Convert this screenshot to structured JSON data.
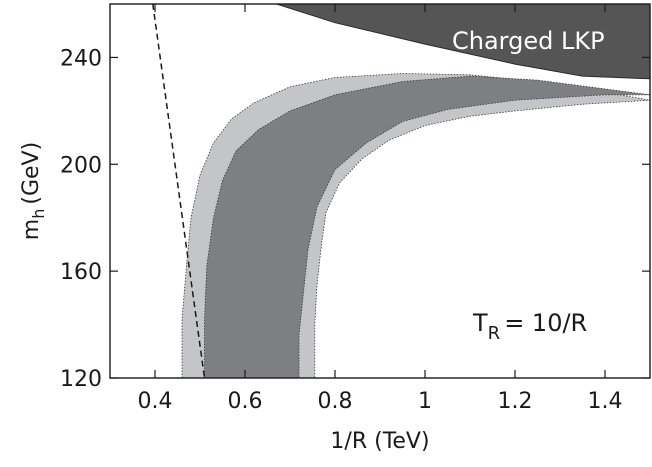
{
  "chart_data": {
    "type": "area",
    "xlabel": "1/R (TeV)",
    "ylabel": {
      "main": "m",
      "sub": "h",
      "unit": "(GeV)"
    },
    "xlim": [
      0.3,
      1.5
    ],
    "ylim": [
      120,
      260
    ],
    "xticks": [
      0.4,
      0.6,
      0.8,
      1.0,
      1.2,
      1.4
    ],
    "xtick_labels": [
      "0.4",
      "0.6",
      "0.8",
      "1",
      "1.2",
      "1.4"
    ],
    "yticks": [
      120,
      160,
      200,
      240
    ],
    "ytick_labels": [
      "120",
      "160",
      "200",
      "240"
    ],
    "colors": {
      "charged_region": "#555555",
      "outer_band": "#c4c5c9",
      "inner_band": "#7e7f83",
      "dashed_line": "#1a1a1a",
      "frame": "#1a1a1a"
    },
    "regions": [
      {
        "name": "charged-lkp-region",
        "label": "Charged LKP",
        "boundary": [
          [
            0.67,
            260
          ],
          [
            0.8,
            253
          ],
          [
            1.0,
            245
          ],
          [
            1.2,
            237.5
          ],
          [
            1.35,
            233
          ],
          [
            1.5,
            232
          ]
        ]
      }
    ],
    "bands": [
      {
        "name": "outer-band",
        "left_edge": [
          [
            0.46,
            120
          ],
          [
            0.46,
            142
          ],
          [
            0.47,
            162
          ],
          [
            0.48,
            180
          ],
          [
            0.5,
            196
          ],
          [
            0.53,
            208
          ],
          [
            0.57,
            217
          ],
          [
            0.62,
            223
          ],
          [
            0.7,
            229
          ],
          [
            0.8,
            232.5
          ],
          [
            0.95,
            234
          ],
          [
            1.1,
            233.5
          ],
          [
            1.3,
            230
          ]
        ],
        "right_edge": [
          [
            1.5,
            224
          ],
          [
            1.35,
            222.5
          ],
          [
            1.2,
            220
          ],
          [
            1.1,
            218
          ],
          [
            1.0,
            214.5
          ],
          [
            0.92,
            209
          ],
          [
            0.86,
            202
          ],
          [
            0.81,
            193
          ],
          [
            0.78,
            182
          ],
          [
            0.77,
            170
          ],
          [
            0.76,
            155
          ],
          [
            0.755,
            140
          ],
          [
            0.755,
            120
          ]
        ]
      },
      {
        "name": "inner-band",
        "left_edge": [
          [
            0.51,
            120
          ],
          [
            0.51,
            142
          ],
          [
            0.515,
            162
          ],
          [
            0.53,
            180
          ],
          [
            0.55,
            194
          ],
          [
            0.58,
            205
          ],
          [
            0.63,
            213
          ],
          [
            0.7,
            220
          ],
          [
            0.8,
            226
          ],
          [
            0.95,
            231
          ],
          [
            1.1,
            233
          ],
          [
            1.25,
            231.5
          ]
        ],
        "right_edge": [
          [
            1.5,
            226
          ],
          [
            1.4,
            226
          ],
          [
            1.2,
            224
          ],
          [
            1.05,
            220.5
          ],
          [
            0.95,
            216
          ],
          [
            0.87,
            208
          ],
          [
            0.8,
            198
          ],
          [
            0.76,
            184
          ],
          [
            0.74,
            168
          ],
          [
            0.73,
            152
          ],
          [
            0.72,
            136
          ],
          [
            0.72,
            120
          ]
        ]
      }
    ],
    "lines": [
      {
        "name": "dashed-boundary",
        "style": "dashed",
        "points": [
          [
            0.395,
            260
          ],
          [
            0.51,
            120
          ]
        ]
      }
    ],
    "annotations": [
      {
        "name": "tr-annotation",
        "main": "T",
        "sub": "R",
        "rest": "= 10/R"
      }
    ]
  }
}
